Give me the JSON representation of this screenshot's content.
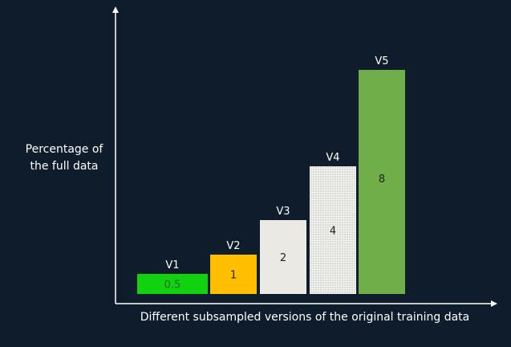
{
  "chart_data": {
    "type": "bar",
    "categories": [
      "V1",
      "V2",
      "V3",
      "V4",
      "V5"
    ],
    "values": [
      0.5,
      1,
      2,
      4,
      8
    ],
    "value_labels": [
      "0.5",
      "1",
      "2",
      "4",
      "8"
    ],
    "colors": [
      "#12d10f",
      "#ffbf00",
      "#ebe9e3",
      "#e9e9e6",
      "#6fae49"
    ],
    "ylabel_lines": [
      "Percentage of",
      "the full data"
    ],
    "xlabel": "Different subsampled versions of the original training data",
    "grid": false,
    "legend": "none",
    "axis_color": "#ffffff",
    "background": "#0e1c2b"
  }
}
